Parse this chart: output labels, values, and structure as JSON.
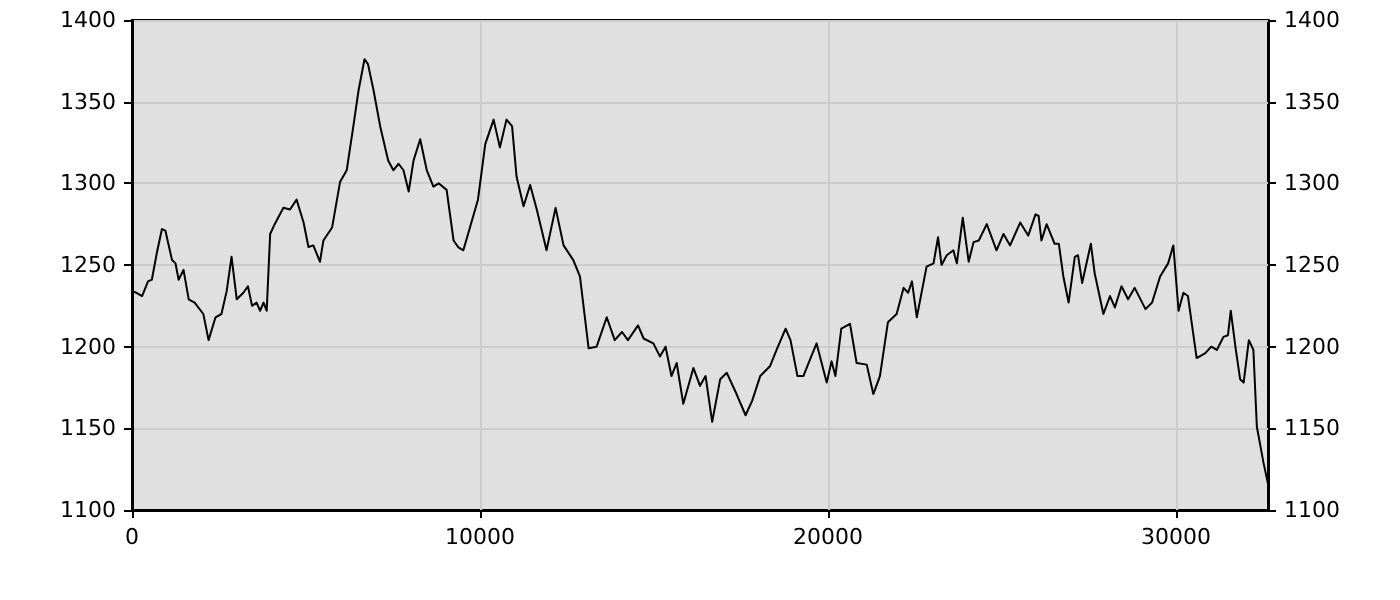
{
  "chart_data": {
    "type": "line",
    "x": [
      0,
      130,
      290,
      460,
      570,
      710,
      860,
      960,
      1150,
      1250,
      1340,
      1480,
      1630,
      1800,
      2050,
      2200,
      2400,
      2570,
      2720,
      2860,
      3010,
      3200,
      3330,
      3450,
      3580,
      3680,
      3780,
      3870,
      3970,
      4100,
      4350,
      4540,
      4730,
      4930,
      5070,
      5210,
      5400,
      5500,
      5750,
      5980,
      6170,
      6360,
      6510,
      6680,
      6780,
      6940,
      7130,
      7360,
      7510,
      7660,
      7800,
      7950,
      8090,
      8280,
      8470,
      8660,
      8810,
      9040,
      9240,
      9370,
      9520,
      9710,
      9940,
      10150,
      10390,
      10570,
      10760,
      10920,
      11050,
      11250,
      11440,
      11630,
      11910,
      12170,
      12400,
      12680,
      12870,
      13120,
      13350,
      13640,
      13870,
      14080,
      14250,
      14540,
      14700,
      14980,
      15170,
      15330,
      15500,
      15650,
      15840,
      16130,
      16320,
      16480,
      16670,
      16900,
      17090,
      17370,
      17630,
      17820,
      18050,
      18330,
      18520,
      18780,
      18920,
      19120,
      19290,
      19480,
      19670,
      19960,
      20100,
      20210,
      20380,
      20630,
      20820,
      21110,
      21300,
      21490,
      21720,
      21970,
      22170,
      22300,
      22410,
      22550,
      22830,
      23030,
      23160,
      23260,
      23410,
      23600,
      23700,
      23870,
      24040,
      24180,
      24330,
      24560,
      24840,
      25040,
      25230,
      25520,
      25750,
      25960,
      26050,
      26130,
      26280,
      26510,
      26630,
      26760,
      26910,
      27090,
      27180,
      27300,
      27550,
      27660,
      27910,
      28100,
      28240,
      28430,
      28620,
      28810,
      29120,
      29310,
      29540,
      29770,
      29920,
      30070,
      30210,
      30340,
      30590,
      30840,
      31010,
      31170,
      31360,
      31490,
      31570,
      31710,
      31840,
      31940,
      32090,
      32220,
      32320,
      32510,
      32640
    ],
    "series": [
      {
        "color": "#000000",
        "values": [
          1234,
          1233,
          1231,
          1240,
          1241,
          1257,
          1272,
          1271,
          1253,
          1251,
          1241,
          1247,
          1229,
          1227,
          1220,
          1204,
          1218,
          1220,
          1234,
          1255,
          1229,
          1233,
          1237,
          1225,
          1227,
          1222,
          1227,
          1222,
          1269,
          1275,
          1285,
          1284,
          1290,
          1276,
          1261,
          1262,
          1252,
          1265,
          1273,
          1301,
          1308,
          1335,
          1357,
          1376,
          1373,
          1357,
          1335,
          1314,
          1308,
          1312,
          1308,
          1295,
          1314,
          1327,
          1308,
          1298,
          1300,
          1296,
          1265,
          1261,
          1259,
          1273,
          1290,
          1324,
          1339,
          1322,
          1339,
          1335,
          1304,
          1286,
          1299,
          1284,
          1259,
          1285,
          1262,
          1253,
          1243,
          1199,
          1200,
          1218,
          1204,
          1209,
          1204,
          1213,
          1205,
          1202,
          1194,
          1200,
          1182,
          1190,
          1165,
          1187,
          1176,
          1182,
          1154,
          1180,
          1184,
          1171,
          1158,
          1167,
          1182,
          1188,
          1198,
          1211,
          1204,
          1182,
          1182,
          1192,
          1202,
          1178,
          1191,
          1182,
          1211,
          1214,
          1190,
          1189,
          1171,
          1182,
          1215,
          1220,
          1236,
          1233,
          1240,
          1218,
          1249,
          1251,
          1267,
          1250,
          1256,
          1259,
          1251,
          1279,
          1252,
          1264,
          1265,
          1275,
          1259,
          1269,
          1262,
          1276,
          1268,
          1281,
          1280,
          1265,
          1275,
          1263,
          1263,
          1243,
          1227,
          1255,
          1256,
          1239,
          1263,
          1245,
          1220,
          1231,
          1224,
          1237,
          1229,
          1236,
          1223,
          1227,
          1243,
          1251,
          1262,
          1222,
          1233,
          1231,
          1193,
          1196,
          1200,
          1198,
          1206,
          1207,
          1222,
          1199,
          1180,
          1178,
          1204,
          1198,
          1151,
          1129,
          1116
        ]
      }
    ],
    "xlim": [
      0,
      32640
    ],
    "xticks": [
      0,
      10000,
      20000,
      30000
    ],
    "ylim": [
      1100,
      1400
    ],
    "yticks": [
      1100,
      1150,
      1200,
      1250,
      1300,
      1350,
      1400
    ],
    "y2lim": [
      1100,
      1400
    ],
    "y2ticks": [
      1100,
      1150,
      1200,
      1250,
      1300,
      1350,
      1400
    ],
    "grid": true,
    "marker": "none",
    "line_style": "solid"
  }
}
